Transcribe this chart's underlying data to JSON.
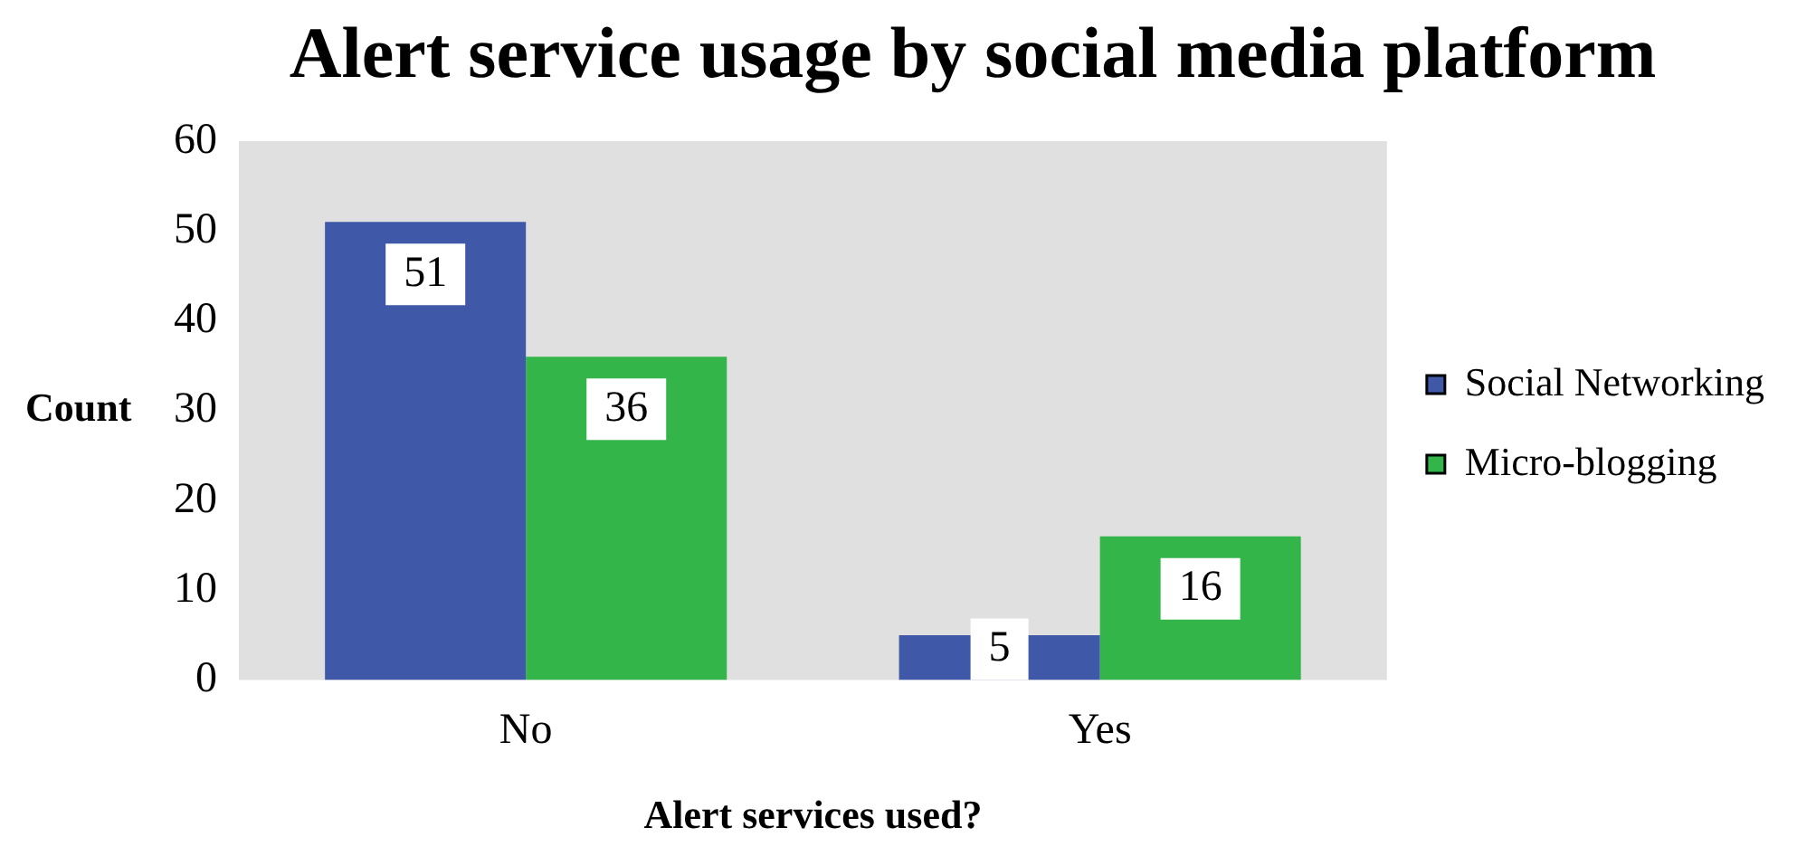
{
  "chart_data": {
    "type": "bar",
    "title": "Alert service usage by social media platform",
    "xlabel": "Alert services used?",
    "ylabel": "Count",
    "categories": [
      "No",
      "Yes"
    ],
    "series": [
      {
        "name": "Social Networking",
        "color": "#3f58a8",
        "values": [
          51,
          5
        ]
      },
      {
        "name": "Micro-blogging",
        "color": "#33b54a",
        "values": [
          36,
          16
        ]
      }
    ],
    "ylim": [
      0,
      60
    ],
    "yticks": [
      0,
      10,
      20,
      30,
      40,
      50,
      60
    ],
    "grid": false,
    "legend": "right",
    "data_labels": true
  }
}
